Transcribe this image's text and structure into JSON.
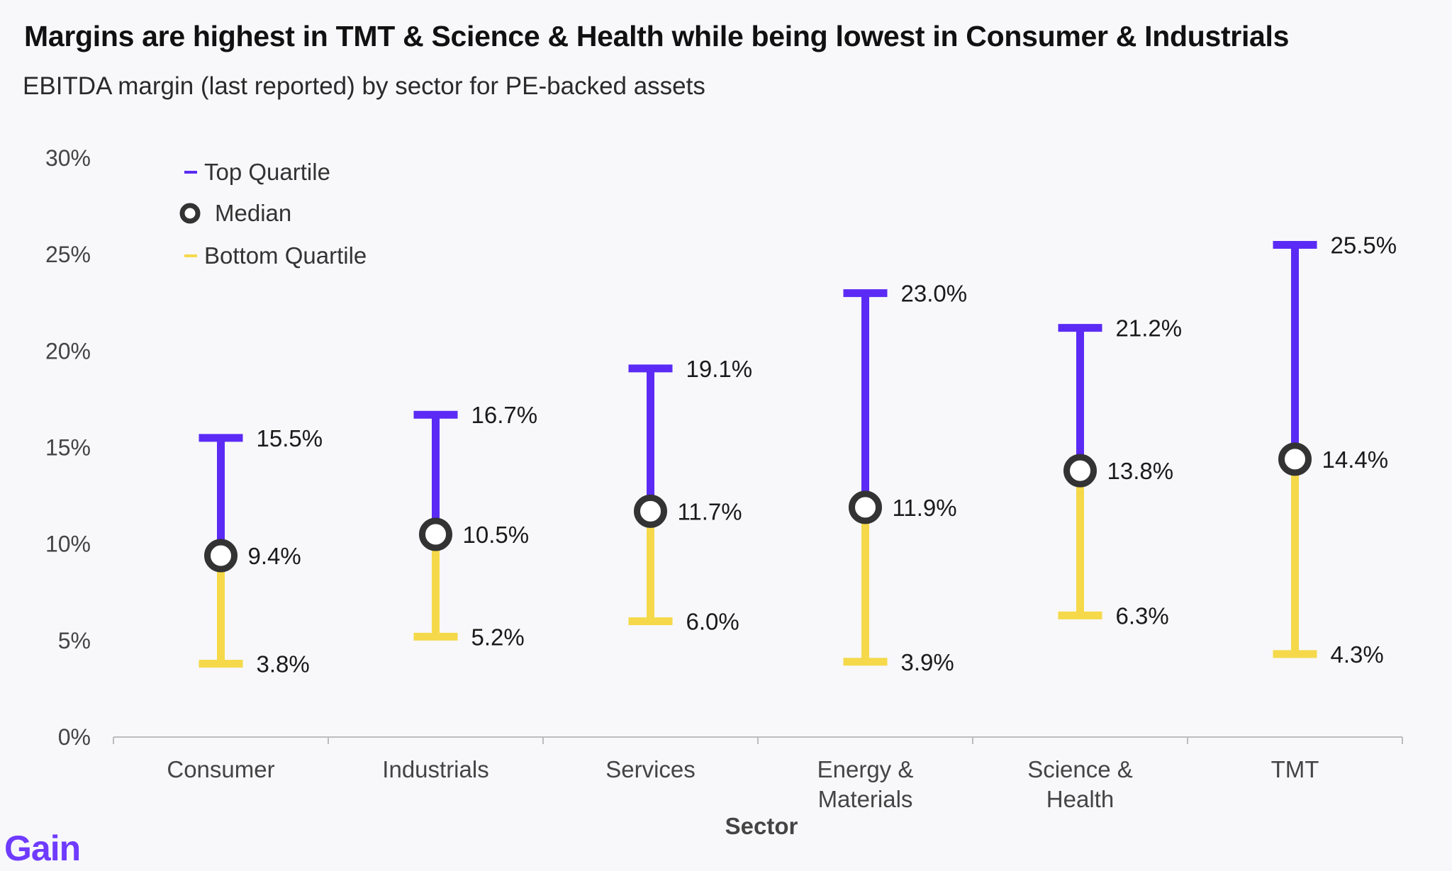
{
  "header": {
    "title": "Margins are highest in TMT & Science & Health while being lowest in Consumer & Industrials",
    "subtitle": "EBITDA margin (last reported) by sector for PE-backed assets"
  },
  "brand": {
    "logo_text": "Gain"
  },
  "chart_data": {
    "type": "range",
    "title": "Margins are highest in TMT & Science & Health while being lowest in Consumer & Industrials",
    "subtitle": "EBITDA margin (last reported) by sector for PE-backed assets",
    "xlabel": "Sector",
    "ylabel": "",
    "ylim": [
      0,
      30
    ],
    "yticks": [
      0,
      5,
      10,
      15,
      20,
      25,
      30
    ],
    "ytick_labels": [
      "0%",
      "5%",
      "10%",
      "15%",
      "20%",
      "25%",
      "30%"
    ],
    "categories": [
      [
        "Consumer"
      ],
      [
        "Industrials"
      ],
      [
        "Services"
      ],
      [
        "Energy &",
        "Materials"
      ],
      [
        "Science &",
        "Health"
      ],
      [
        "TMT"
      ]
    ],
    "series": [
      {
        "name": "Top Quartile",
        "color": "#5b2bf5",
        "values": [
          15.5,
          16.7,
          19.1,
          23.0,
          21.2,
          25.5
        ],
        "labels": [
          "15.5%",
          "16.7%",
          "19.1%",
          "23.0%",
          "21.2%",
          "25.5%"
        ]
      },
      {
        "name": "Median",
        "color": "#333333",
        "values": [
          9.4,
          10.5,
          11.7,
          11.9,
          13.8,
          14.4
        ],
        "labels": [
          "9.4%",
          "10.5%",
          "11.7%",
          "11.9%",
          "13.8%",
          "14.4%"
        ]
      },
      {
        "name": "Bottom Quartile",
        "color": "#f5d94a",
        "values": [
          3.8,
          5.2,
          6.0,
          3.9,
          6.3,
          4.3
        ],
        "labels": [
          "3.8%",
          "5.2%",
          "6.0%",
          "3.9%",
          "6.3%",
          "4.3%"
        ]
      }
    ],
    "legend_position": "top-left",
    "grid": false
  }
}
